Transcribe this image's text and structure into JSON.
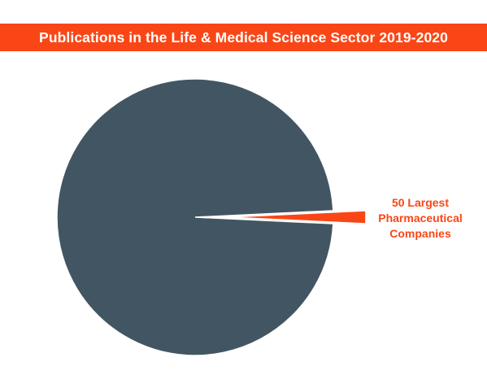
{
  "title": "Publications in the Life & Medical Science Sector 2019-2020",
  "colors": {
    "title_bar": "#fa4616",
    "title_text": "#ffffff",
    "main_slice": "#425563",
    "highlight_slice": "#fa4616"
  },
  "chart_data": {
    "type": "pie",
    "title": "Publications in the Life & Medical Science Sector 2019-2020",
    "slices": [
      {
        "label": "50 Largest Pharmaceutical Companies",
        "value": 1.5,
        "color": "#fa4616",
        "exploded": true,
        "labelled": true
      },
      {
        "label": "",
        "value": 98.5,
        "color": "#425563",
        "exploded": false,
        "labelled": false
      }
    ],
    "legend": "none",
    "unit": "percent (estimated)"
  }
}
